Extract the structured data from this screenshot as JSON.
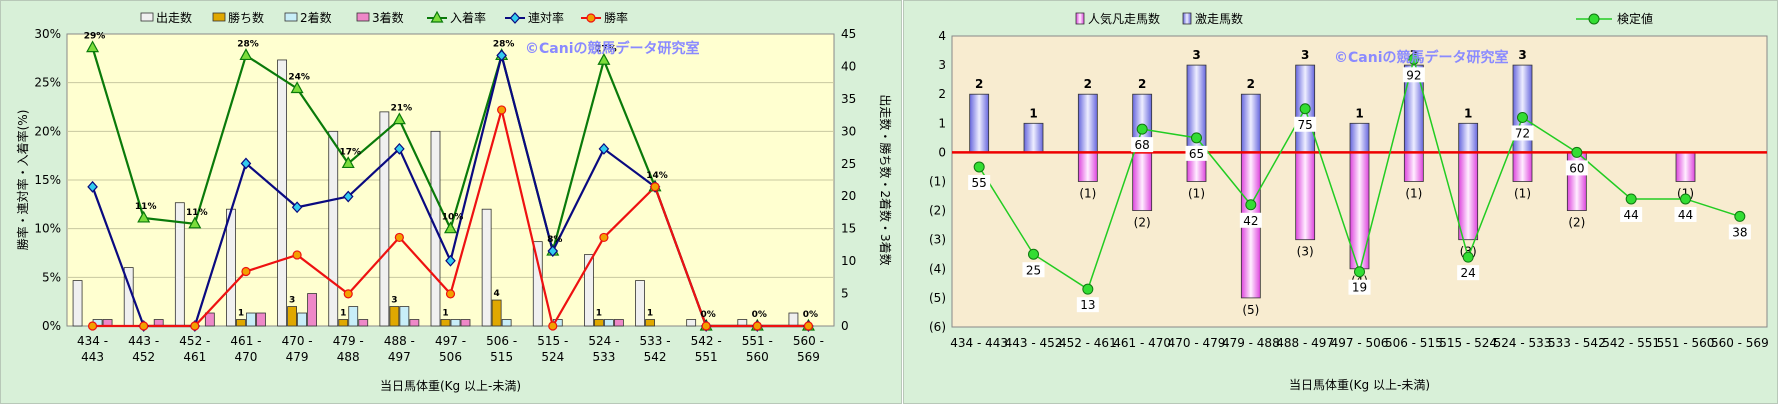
{
  "chart_data": [
    {
      "type": "bar",
      "categories": [
        [
          "434 -",
          "443"
        ],
        [
          "443 -",
          "452"
        ],
        [
          "452 -",
          "461"
        ],
        [
          "461 -",
          "470"
        ],
        [
          "470 -",
          "479"
        ],
        [
          "479 -",
          "488"
        ],
        [
          "488 -",
          "497"
        ],
        [
          "497 -",
          "506"
        ],
        [
          "506 -",
          "515"
        ],
        [
          "515 -",
          "524"
        ],
        [
          "524 -",
          "533"
        ],
        [
          "533 -",
          "542"
        ],
        [
          "542 -",
          "551"
        ],
        [
          "551 -",
          "560"
        ],
        [
          "560 -",
          "569"
        ]
      ],
      "left_axis": {
        "label": "勝率・連対率・入着率(%)",
        "min": 0,
        "max": 30,
        "step": 5,
        "ticks": [
          "0%",
          "5%",
          "10%",
          "15%",
          "20%",
          "25%",
          "30%"
        ]
      },
      "right_axis": {
        "label": "出走数・勝ち数・2着数・3着数",
        "min": 0,
        "max": 45,
        "step": 5,
        "ticks": [
          "0",
          "5",
          "10",
          "15",
          "20",
          "25",
          "30",
          "35",
          "40",
          "45"
        ]
      },
      "xlabel": "当日馬体重(Kg 以上-未満)",
      "watermark": "©Caniの競馬データ研究室",
      "bar_series": [
        {
          "name": "出走数",
          "color": "#f0f0f0",
          "values": [
            7,
            9,
            19,
            18,
            41,
            30,
            33,
            30,
            18,
            13,
            11,
            7,
            1,
            1,
            2
          ]
        },
        {
          "name": "勝ち数",
          "color": "#e0a800",
          "values": [
            0,
            0,
            0,
            1,
            3,
            1,
            3,
            1,
            4,
            0,
            1,
            1,
            0,
            0,
            0
          ]
        },
        {
          "name": "2着数",
          "color": "#c8eef8",
          "values": [
            1,
            0,
            0,
            2,
            2,
            3,
            3,
            1,
            1,
            1,
            1,
            0,
            0,
            0,
            0
          ]
        },
        {
          "name": "3着数",
          "color": "#ee88c8",
          "values": [
            1,
            1,
            2,
            2,
            5,
            1,
            1,
            1,
            0,
            0,
            1,
            0,
            0,
            0,
            0
          ]
        }
      ],
      "line_series": [
        {
          "name": "入着率",
          "color": "#0a7a0a",
          "marker": "triangle",
          "values": [
            28.6,
            11.1,
            10.5,
            27.8,
            24.4,
            16.7,
            21.2,
            10.0,
            27.8,
            7.7,
            27.3,
            14.3,
            0,
            0,
            0
          ]
        },
        {
          "name": "連対率",
          "color": "#0a0a80",
          "marker": "diamond",
          "values": [
            14.3,
            0,
            0,
            16.7,
            12.2,
            13.3,
            18.2,
            6.7,
            27.8,
            7.7,
            18.2,
            14.3,
            0,
            0,
            0
          ]
        },
        {
          "name": "勝率",
          "color": "#ee1111",
          "marker": "circle",
          "values": [
            0,
            0,
            0,
            5.6,
            7.3,
            3.3,
            9.1,
            3.3,
            22.2,
            0,
            9.1,
            14.3,
            0,
            0,
            0
          ]
        }
      ],
      "rate_labels": [
        "29%",
        "11%",
        "11%",
        "28%",
        "24%",
        "17%",
        "21%",
        "10%",
        "28%",
        "8%",
        "27%",
        "14%",
        "0%",
        "0%",
        "0%"
      ],
      "win_labels": [
        "",
        "",
        "",
        "1",
        "3",
        "1",
        "3",
        "1",
        "4",
        "",
        "1",
        "1",
        "",
        "",
        ""
      ]
    },
    {
      "type": "bar",
      "categories": [
        "434 - 443",
        "443 - 452",
        "452 - 461",
        "461 - 470",
        "470 - 479",
        "479 - 488",
        "488 - 497",
        "497 - 506",
        "506 - 515",
        "515 - 524",
        "524 - 533",
        "533 - 542",
        "542 - 551",
        "551 - 560",
        "560 - 569"
      ],
      "xlabel": "当日馬体重(Kg 以上-未満)",
      "watermark": "©Caniの競馬データ研究室",
      "y_axis": {
        "min": -6,
        "max": 4,
        "step": 1,
        "ticks": [
          "(6)",
          "(5)",
          "(4)",
          "(3)",
          "(2)",
          "(1)",
          "0",
          "1",
          "2",
          "3",
          "4"
        ]
      },
      "series": [
        {
          "name": "人気凡走馬数",
          "color": "#ee88ee",
          "values": [
            0,
            0,
            -1,
            -2,
            -1,
            -5,
            -3,
            -4,
            -1,
            -3,
            -1,
            -2,
            0,
            -1,
            0
          ],
          "labels": [
            "",
            "",
            "(1)",
            "(2)",
            "(1)",
            "(5)",
            "(3)",
            "(4)",
            "(1)",
            "(3)",
            "(1)",
            "(2)",
            "",
            "(1)",
            ""
          ]
        },
        {
          "name": "激走馬数",
          "color": "#8888ee",
          "values": [
            2,
            1,
            2,
            2,
            3,
            2,
            3,
            1,
            3,
            1,
            3,
            0,
            0,
            0,
            0
          ],
          "labels": [
            "2",
            "1",
            "2",
            "2",
            "3",
            "2",
            "3",
            "1",
            "3",
            "1",
            "3",
            "",
            "",
            "",
            ""
          ]
        },
        {
          "name": "検定値",
          "color": "#22cc22",
          "values": [
            55,
            25,
            13,
            68,
            65,
            42,
            75,
            19,
            92,
            24,
            72,
            60,
            44,
            44,
            38
          ]
        }
      ]
    }
  ]
}
